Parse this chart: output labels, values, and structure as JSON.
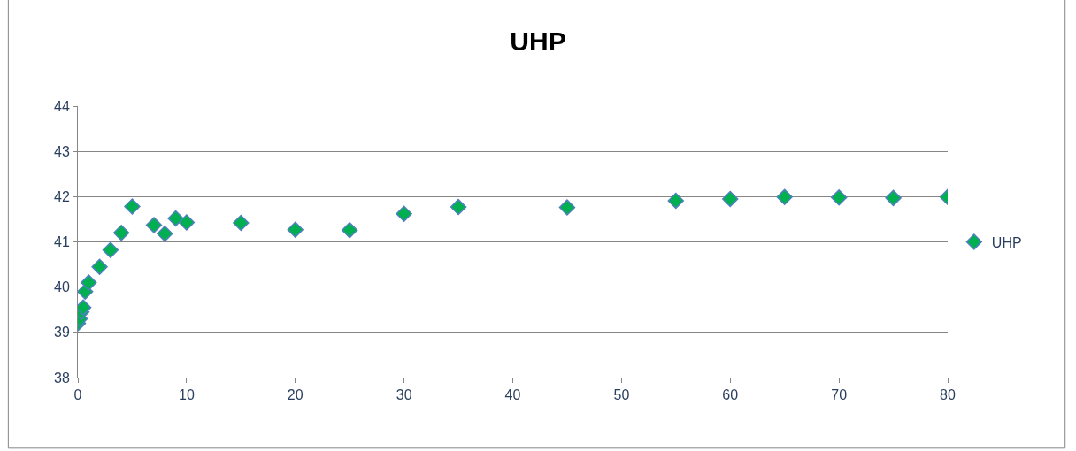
{
  "chart_data": {
    "type": "scatter",
    "title": "UHP",
    "x": [
      0,
      0.17,
      0.33,
      0.5,
      0.67,
      0.83,
      1,
      2,
      3,
      4,
      5,
      7,
      8,
      9,
      10,
      15,
      20,
      25,
      30,
      35,
      45,
      55,
      60,
      65,
      70,
      75,
      80
    ],
    "series": [
      {
        "name": "UHP",
        "color": "#00b050",
        "values": [
          39.2,
          39.3,
          39.45,
          39.55,
          39.9,
          null,
          40.1,
          40.45,
          40.82,
          41.2,
          41.78,
          41.37,
          41.18,
          41.52,
          41.43,
          41.42,
          41.27,
          41.26,
          41.62,
          41.77,
          41.76,
          41.91,
          41.95,
          41.99,
          41.98,
          41.97,
          41.99
        ]
      }
    ],
    "xlim": [
      0,
      80
    ],
    "xticks": [
      0,
      10,
      20,
      30,
      40,
      50,
      60,
      70,
      80
    ],
    "ylim": [
      38,
      44
    ],
    "yticks": [
      38,
      39,
      40,
      41,
      42,
      43,
      44
    ],
    "grid": "y",
    "legend": "right",
    "marker": "diamond"
  }
}
